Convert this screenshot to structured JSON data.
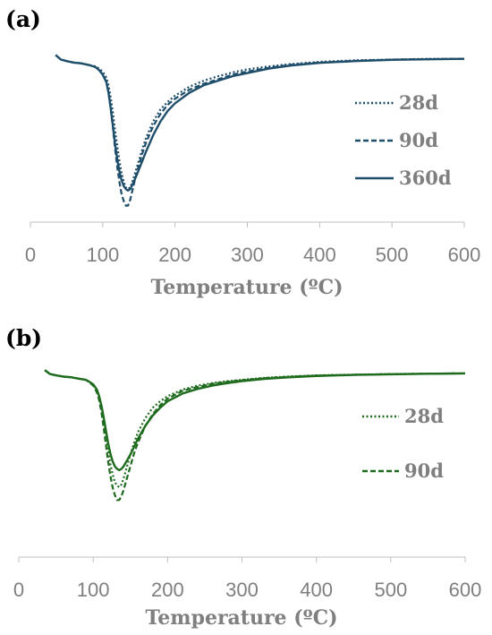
{
  "chart_data": [
    {
      "panel_label": "(a)",
      "type": "line",
      "xlabel": "Temperature (ºC)",
      "ylabel": "",
      "xlim": [
        0,
        600
      ],
      "xticks": [
        "0",
        "100",
        "200",
        "300",
        "400",
        "500",
        "600"
      ],
      "ylim": [
        -1.05,
        0.08
      ],
      "legend_position": "right",
      "color": "#1f4e6b",
      "series": [
        {
          "name": "28d",
          "style": "dotted",
          "x": [
            35,
            42,
            50,
            60,
            70,
            80,
            90,
            95,
            100,
            105,
            108,
            111,
            114,
            117,
            120,
            123,
            126,
            129,
            132,
            135,
            138,
            141,
            145,
            150,
            155,
            160,
            170,
            180,
            190,
            200,
            220,
            240,
            260,
            280,
            300,
            330,
            360,
            400,
            450,
            500,
            550,
            600
          ],
          "y": [
            0,
            -0.03,
            -0.04,
            -0.05,
            -0.055,
            -0.065,
            -0.075,
            -0.09,
            -0.11,
            -0.15,
            -0.2,
            -0.28,
            -0.38,
            -0.5,
            -0.6,
            -0.7,
            -0.78,
            -0.84,
            -0.88,
            -0.89,
            -0.88,
            -0.84,
            -0.78,
            -0.7,
            -0.62,
            -0.55,
            -0.44,
            -0.36,
            -0.31,
            -0.27,
            -0.21,
            -0.17,
            -0.14,
            -0.115,
            -0.095,
            -0.075,
            -0.06,
            -0.045,
            -0.035,
            -0.03,
            -0.025,
            -0.025
          ]
        },
        {
          "name": "90d",
          "style": "dashed",
          "x": [
            35,
            42,
            50,
            60,
            70,
            80,
            90,
            95,
            100,
            105,
            108,
            111,
            114,
            117,
            120,
            123,
            126,
            129,
            132,
            135,
            138,
            141,
            145,
            150,
            155,
            160,
            170,
            180,
            190,
            200,
            220,
            240,
            260,
            280,
            300,
            330,
            360,
            400,
            450,
            500,
            550,
            600
          ],
          "y": [
            0,
            -0.03,
            -0.04,
            -0.05,
            -0.055,
            -0.065,
            -0.08,
            -0.1,
            -0.13,
            -0.18,
            -0.25,
            -0.35,
            -0.48,
            -0.62,
            -0.74,
            -0.84,
            -0.92,
            -0.97,
            -1.0,
            -1.0,
            -0.96,
            -0.9,
            -0.82,
            -0.73,
            -0.65,
            -0.58,
            -0.47,
            -0.39,
            -0.33,
            -0.29,
            -0.23,
            -0.19,
            -0.16,
            -0.13,
            -0.11,
            -0.085,
            -0.065,
            -0.05,
            -0.038,
            -0.03,
            -0.027,
            -0.025
          ]
        },
        {
          "name": "360d",
          "style": "solid",
          "x": [
            35,
            42,
            50,
            60,
            70,
            80,
            90,
            95,
            100,
            105,
            108,
            111,
            114,
            117,
            120,
            123,
            126,
            129,
            132,
            135,
            138,
            141,
            145,
            150,
            155,
            160,
            170,
            180,
            190,
            200,
            220,
            240,
            260,
            280,
            300,
            330,
            360,
            400,
            450,
            500,
            550,
            600
          ],
          "y": [
            0,
            -0.03,
            -0.04,
            -0.05,
            -0.055,
            -0.065,
            -0.08,
            -0.1,
            -0.13,
            -0.18,
            -0.25,
            -0.35,
            -0.47,
            -0.59,
            -0.69,
            -0.77,
            -0.83,
            -0.87,
            -0.89,
            -0.9,
            -0.89,
            -0.86,
            -0.82,
            -0.76,
            -0.7,
            -0.64,
            -0.53,
            -0.44,
            -0.37,
            -0.32,
            -0.25,
            -0.2,
            -0.17,
            -0.14,
            -0.12,
            -0.09,
            -0.07,
            -0.052,
            -0.04,
            -0.032,
            -0.028,
            -0.025
          ]
        }
      ]
    },
    {
      "panel_label": "(b)",
      "type": "line",
      "xlabel": "Temperature (ºC)",
      "ylabel": "",
      "xlim": [
        0,
        600
      ],
      "xticks": [
        "0",
        "100",
        "200",
        "300",
        "400",
        "500",
        "600"
      ],
      "ylim": [
        -1.15,
        0.05
      ],
      "legend_position": "right",
      "color": "#1e6b1e",
      "series": [
        {
          "name": "28d",
          "style": "dotted",
          "x": [
            35,
            42,
            50,
            60,
            70,
            80,
            90,
            95,
            100,
            105,
            108,
            111,
            114,
            117,
            120,
            123,
            126,
            129,
            132,
            135,
            138,
            141,
            145,
            150,
            155,
            160,
            170,
            180,
            190,
            200,
            220,
            240,
            260,
            280,
            300,
            330,
            360,
            400,
            450,
            500,
            550,
            600
          ],
          "y": [
            0,
            -0.03,
            -0.04,
            -0.05,
            -0.055,
            -0.065,
            -0.075,
            -0.09,
            -0.11,
            -0.15,
            -0.2,
            -0.28,
            -0.38,
            -0.5,
            -0.62,
            -0.72,
            -0.8,
            -0.86,
            -0.89,
            -0.9,
            -0.88,
            -0.83,
            -0.75,
            -0.65,
            -0.56,
            -0.48,
            -0.37,
            -0.29,
            -0.24,
            -0.2,
            -0.15,
            -0.12,
            -0.1,
            -0.085,
            -0.075,
            -0.06,
            -0.05,
            -0.04,
            -0.035,
            -0.03,
            -0.027,
            -0.025
          ]
        },
        {
          "name": "90d",
          "style": "dashed",
          "x": [
            35,
            42,
            50,
            60,
            70,
            80,
            90,
            95,
            100,
            105,
            108,
            111,
            114,
            117,
            120,
            123,
            126,
            129,
            132,
            135,
            138,
            141,
            145,
            150,
            155,
            160,
            170,
            180,
            190,
            200,
            220,
            240,
            260,
            280,
            300,
            330,
            360,
            400,
            450,
            500,
            550,
            600
          ],
          "y": [
            0,
            -0.03,
            -0.04,
            -0.05,
            -0.055,
            -0.065,
            -0.075,
            -0.095,
            -0.12,
            -0.17,
            -0.23,
            -0.32,
            -0.44,
            -0.57,
            -0.7,
            -0.81,
            -0.9,
            -0.96,
            -1.0,
            -1.0,
            -0.97,
            -0.92,
            -0.84,
            -0.74,
            -0.64,
            -0.56,
            -0.43,
            -0.34,
            -0.27,
            -0.22,
            -0.16,
            -0.13,
            -0.105,
            -0.09,
            -0.078,
            -0.062,
            -0.052,
            -0.042,
            -0.036,
            -0.031,
            -0.028,
            -0.025
          ]
        },
        {
          "name": "",
          "style": "solid",
          "x": [
            35,
            42,
            50,
            60,
            70,
            80,
            90,
            95,
            100,
            105,
            108,
            111,
            114,
            117,
            120,
            123,
            126,
            129,
            132,
            135,
            138,
            141,
            145,
            150,
            155,
            160,
            170,
            180,
            190,
            200,
            220,
            240,
            260,
            280,
            300,
            330,
            360,
            400,
            450,
            500,
            550,
            600
          ],
          "y": [
            0,
            -0.03,
            -0.04,
            -0.05,
            -0.055,
            -0.065,
            -0.075,
            -0.09,
            -0.11,
            -0.15,
            -0.2,
            -0.27,
            -0.36,
            -0.46,
            -0.56,
            -0.64,
            -0.7,
            -0.74,
            -0.76,
            -0.77,
            -0.76,
            -0.74,
            -0.7,
            -0.65,
            -0.59,
            -0.53,
            -0.43,
            -0.35,
            -0.29,
            -0.24,
            -0.18,
            -0.145,
            -0.12,
            -0.1,
            -0.085,
            -0.068,
            -0.056,
            -0.045,
            -0.037,
            -0.032,
            -0.028,
            -0.025
          ]
        }
      ]
    }
  ]
}
